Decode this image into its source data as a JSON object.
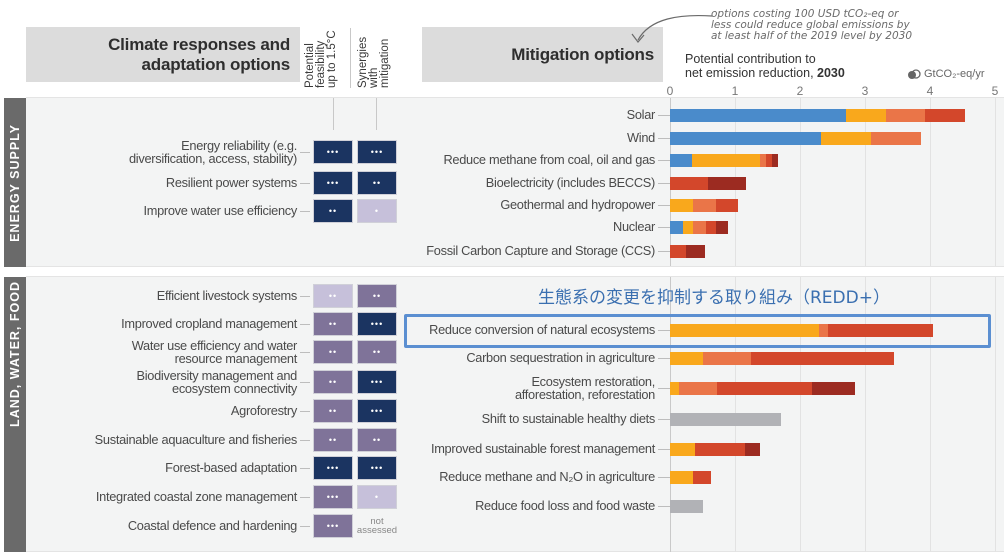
{
  "header": {
    "left_title_line1": "Climate responses and",
    "left_title_line2": "adaptation options",
    "col_feasibility": "Potential\nfeasibility\nup to 1.5°C",
    "col_synergies": "Synergies\nwith\nmitigation",
    "right_title": "Mitigation options",
    "annotation": "options costing 100 USD tCO₂-eq or\nless could reduce global emissions by\nat least half of the 2019 level by 2030",
    "axis_title_line1": "Potential contribution to",
    "axis_title_line2_prefix": "net emission reduction, ",
    "axis_title_line2_bold": "2030",
    "unit_label": "GtCO₂-eq/yr",
    "unit_icon": "cloud-icon"
  },
  "sections": [
    {
      "name": "ENERGY SUPPLY",
      "adaptation": [
        {
          "label": "Energy reliability (e.g.\ndiversification, access, stability)",
          "feasibility": "•••",
          "feasibility_color": "#1b3461",
          "synergy": "•••",
          "synergy_color": "#1b3461"
        },
        {
          "label": "Resilient power systems",
          "feasibility": "•••",
          "feasibility_color": "#1b3461",
          "synergy": "••",
          "synergy_color": "#1b3461"
        },
        {
          "label": "Improve water use efficiency",
          "feasibility": "••",
          "feasibility_color": "#1b3461",
          "synergy": "•",
          "synergy_color": "#c6c0da"
        }
      ]
    },
    {
      "name": "LAND, WATER, FOOD",
      "adaptation": [
        {
          "label": "Efficient livestock systems",
          "feasibility": "••",
          "feasibility_color": "#c6c0da",
          "synergy": "••",
          "synergy_color": "#7f7399"
        },
        {
          "label": "Improved cropland management",
          "feasibility": "••",
          "feasibility_color": "#7f7399",
          "synergy": "•••",
          "synergy_color": "#1b3461"
        },
        {
          "label": "Water use efficiency and water\nresource management",
          "feasibility": "••",
          "feasibility_color": "#7f7399",
          "synergy": "••",
          "synergy_color": "#7f7399"
        },
        {
          "label": "Biodiversity management and\necosystem connectivity",
          "feasibility": "••",
          "feasibility_color": "#7f7399",
          "synergy": "•••",
          "synergy_color": "#1b3461"
        },
        {
          "label": "Agroforestry",
          "feasibility": "••",
          "feasibility_color": "#7f7399",
          "synergy": "•••",
          "synergy_color": "#1b3461"
        },
        {
          "label": "Sustainable aquaculture and fisheries",
          "feasibility": "••",
          "feasibility_color": "#7f7399",
          "synergy": "••",
          "synergy_color": "#7f7399"
        },
        {
          "label": "Forest-based adaptation",
          "feasibility": "•••",
          "feasibility_color": "#1b3461",
          "synergy": "•••",
          "synergy_color": "#1b3461"
        },
        {
          "label": "Integrated coastal zone management",
          "feasibility": "•••",
          "feasibility_color": "#7f7399",
          "synergy": "•",
          "synergy_color": "#c6c0da"
        },
        {
          "label": "Coastal defence and hardening",
          "feasibility": "•••",
          "feasibility_color": "#7f7399",
          "synergy": "not\nassessed",
          "synergy_color": null
        }
      ]
    }
  ],
  "highlight_note": "生態系の変更を抑制する取り組み（REDD+）",
  "chart_data": {
    "type": "bar",
    "orientation": "horizontal-stacked",
    "title": "Mitigation options — Potential contribution to net emission reduction, 2030",
    "xlabel": "GtCO2-eq/yr",
    "xlim": [
      0,
      5
    ],
    "x_ticks": [
      "0",
      "1",
      "2",
      "3",
      "4",
      "5"
    ],
    "grid": true,
    "segment_colors": {
      "blue": "#4a8bcb",
      "orange": "#f9a81c",
      "light_orange": "#ea7548",
      "red": "#d3472b",
      "dark_red": "#9c2b21",
      "gray": "#b1b2b6"
    },
    "categories": [
      "Solar",
      "Wind",
      "Reduce methane from coal, oil and gas",
      "Bioelectricity (includes BECCS)",
      "Geothermal and hydropower",
      "Nuclear",
      "Fossil Carbon Capture and Storage (CCS)",
      "Reduce conversion of natural ecosystems",
      "Carbon sequestration in agriculture",
      "Ecosystem restoration,\nafforestation, reforestation",
      "Shift to sustainable healthy diets",
      "Improved sustainable forest management",
      "Reduce methane and N₂O in agriculture",
      "Reduce food loss and food waste"
    ],
    "bars": [
      {
        "section": 0,
        "segments": [
          [
            "blue",
            2.7
          ],
          [
            "orange",
            0.62
          ],
          [
            "light_orange",
            0.6
          ],
          [
            "red",
            0.62
          ]
        ]
      },
      {
        "section": 0,
        "segments": [
          [
            "blue",
            2.32
          ],
          [
            "orange",
            0.77
          ],
          [
            "light_orange",
            0.77
          ]
        ]
      },
      {
        "section": 0,
        "segments": [
          [
            "blue",
            0.34
          ],
          [
            "orange",
            1.04
          ],
          [
            "light_orange",
            0.1
          ],
          [
            "red",
            0.09
          ],
          [
            "dark_red",
            0.09
          ]
        ]
      },
      {
        "section": 0,
        "segments": [
          [
            "red",
            0.58
          ],
          [
            "dark_red",
            0.59
          ]
        ]
      },
      {
        "section": 0,
        "segments": [
          [
            "orange",
            0.35
          ],
          [
            "light_orange",
            0.36
          ],
          [
            "red",
            0.34
          ]
        ]
      },
      {
        "section": 0,
        "segments": [
          [
            "blue",
            0.2
          ],
          [
            "orange",
            0.15
          ],
          [
            "light_orange",
            0.2
          ],
          [
            "red",
            0.16
          ],
          [
            "dark_red",
            0.18
          ]
        ]
      },
      {
        "section": 0,
        "segments": [
          [
            "red",
            0.25
          ],
          [
            "dark_red",
            0.29
          ]
        ]
      },
      {
        "section": 1,
        "highlighted": true,
        "segments": [
          [
            "orange",
            2.29
          ],
          [
            "light_orange",
            0.14
          ],
          [
            "red",
            1.62
          ]
        ]
      },
      {
        "section": 1,
        "segments": [
          [
            "orange",
            0.5
          ],
          [
            "light_orange",
            0.75
          ],
          [
            "red",
            2.2
          ]
        ]
      },
      {
        "section": 1,
        "segments": [
          [
            "orange",
            0.14
          ],
          [
            "light_orange",
            0.58
          ],
          [
            "red",
            1.46
          ],
          [
            "dark_red",
            0.67
          ]
        ]
      },
      {
        "section": 1,
        "segments": [
          [
            "gray",
            1.71
          ]
        ]
      },
      {
        "section": 1,
        "segments": [
          [
            "orange",
            0.38
          ],
          [
            "red",
            0.77
          ],
          [
            "dark_red",
            0.23
          ]
        ]
      },
      {
        "section": 1,
        "segments": [
          [
            "orange",
            0.35
          ],
          [
            "red",
            0.28
          ]
        ]
      },
      {
        "section": 1,
        "segments": [
          [
            "gray",
            0.51
          ]
        ]
      }
    ]
  }
}
